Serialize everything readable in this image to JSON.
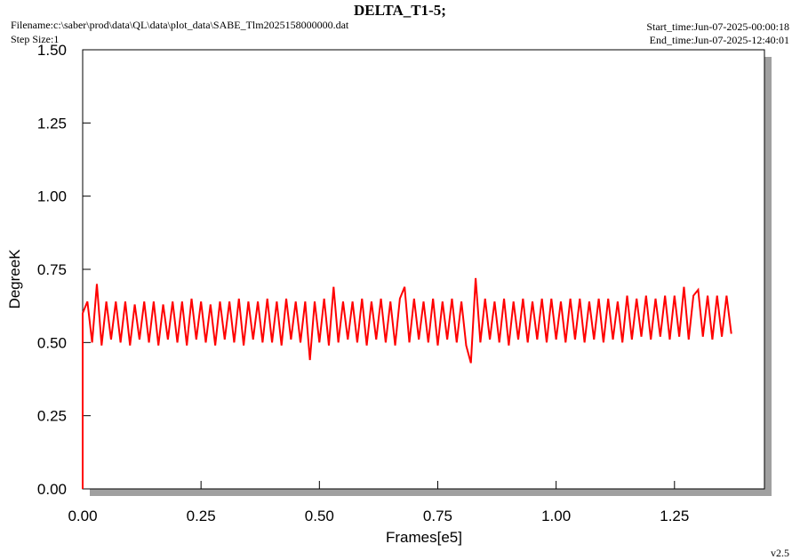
{
  "header": {
    "title": "DELTA_T1-5;",
    "filename": "Filename:c:\\saber\\prod\\data\\QL\\data\\plot_data\\SABE_Tlm2025158000000.dat",
    "step_size": "Step Size:1",
    "start_time": "Start_time:Jun-07-2025-00:00:18",
    "end_time": "End_time:Jun-07-2025-12:40:01",
    "version": "v2.5"
  },
  "chart_data": {
    "type": "line",
    "xlabel": "Frames[e5]",
    "ylabel": "DegreeK",
    "xlim": [
      0,
      1.44
    ],
    "ylim": [
      0,
      1.5
    ],
    "xticks": [
      {
        "value": 0,
        "label": "0.00"
      },
      {
        "value": 0.25,
        "label": "0.25"
      },
      {
        "value": 0.5,
        "label": "0.50"
      },
      {
        "value": 0.75,
        "label": "0.75"
      },
      {
        "value": 1,
        "label": "1.00"
      },
      {
        "value": 1.25,
        "label": "1.25"
      }
    ],
    "yticks": [
      {
        "value": 0,
        "label": "0.00"
      },
      {
        "value": 0.25,
        "label": "0.25"
      },
      {
        "value": 0.5,
        "label": "0.50"
      },
      {
        "value": 0.75,
        "label": "0.75"
      },
      {
        "value": 1,
        "label": "1.00"
      },
      {
        "value": 1.25,
        "label": "1.25"
      },
      {
        "value": 1.5,
        "label": "1.50"
      }
    ],
    "color": "#ff0000",
    "x": [
      0,
      0,
      0.01,
      0.02,
      0.03,
      0.04,
      0.05,
      0.06,
      0.07,
      0.08,
      0.09,
      0.1,
      0.11,
      0.12,
      0.13,
      0.14,
      0.15,
      0.16,
      0.17,
      0.18,
      0.19,
      0.2,
      0.21,
      0.22,
      0.23,
      0.24,
      0.25,
      0.26,
      0.27,
      0.28,
      0.29,
      0.3,
      0.31,
      0.32,
      0.33,
      0.34,
      0.35,
      0.36,
      0.37,
      0.38,
      0.39,
      0.4,
      0.41,
      0.42,
      0.43,
      0.44,
      0.45,
      0.46,
      0.47,
      0.48,
      0.49,
      0.5,
      0.51,
      0.52,
      0.53,
      0.54,
      0.55,
      0.56,
      0.57,
      0.58,
      0.59,
      0.6,
      0.61,
      0.62,
      0.63,
      0.64,
      0.65,
      0.66,
      0.67,
      0.68,
      0.69,
      0.7,
      0.71,
      0.72,
      0.73,
      0.74,
      0.75,
      0.76,
      0.77,
      0.78,
      0.79,
      0.8,
      0.81,
      0.82,
      0.83,
      0.84,
      0.85,
      0.86,
      0.87,
      0.88,
      0.89,
      0.9,
      0.91,
      0.92,
      0.93,
      0.94,
      0.95,
      0.96,
      0.97,
      0.98,
      0.99,
      1,
      1.01,
      1.02,
      1.03,
      1.04,
      1.05,
      1.06,
      1.07,
      1.08,
      1.09,
      1.1,
      1.11,
      1.12,
      1.13,
      1.14,
      1.15,
      1.16,
      1.17,
      1.18,
      1.19,
      1.2,
      1.21,
      1.22,
      1.23,
      1.24,
      1.25,
      1.26,
      1.27,
      1.28,
      1.29,
      1.3,
      1.31,
      1.32,
      1.33,
      1.34,
      1.35,
      1.36,
      1.37
    ],
    "values": [
      0,
      0.6,
      0.64,
      0.5,
      0.7,
      0.49,
      0.64,
      0.51,
      0.64,
      0.5,
      0.64,
      0.49,
      0.63,
      0.51,
      0.64,
      0.5,
      0.64,
      0.49,
      0.63,
      0.51,
      0.64,
      0.5,
      0.64,
      0.49,
      0.65,
      0.51,
      0.64,
      0.5,
      0.63,
      0.49,
      0.64,
      0.51,
      0.64,
      0.5,
      0.65,
      0.49,
      0.64,
      0.51,
      0.64,
      0.5,
      0.65,
      0.5,
      0.64,
      0.49,
      0.65,
      0.51,
      0.64,
      0.5,
      0.64,
      0.44,
      0.64,
      0.5,
      0.65,
      0.49,
      0.69,
      0.5,
      0.64,
      0.51,
      0.64,
      0.5,
      0.65,
      0.49,
      0.64,
      0.51,
      0.65,
      0.5,
      0.64,
      0.49,
      0.65,
      0.69,
      0.5,
      0.65,
      0.51,
      0.64,
      0.5,
      0.65,
      0.49,
      0.64,
      0.51,
      0.65,
      0.5,
      0.64,
      0.49,
      0.43,
      0.72,
      0.5,
      0.65,
      0.51,
      0.64,
      0.5,
      0.65,
      0.49,
      0.64,
      0.51,
      0.65,
      0.5,
      0.64,
      0.51,
      0.65,
      0.5,
      0.65,
      0.51,
      0.64,
      0.5,
      0.65,
      0.51,
      0.65,
      0.5,
      0.64,
      0.51,
      0.65,
      0.5,
      0.65,
      0.51,
      0.64,
      0.5,
      0.66,
      0.51,
      0.65,
      0.52,
      0.66,
      0.51,
      0.65,
      0.52,
      0.66,
      0.51,
      0.66,
      0.52,
      0.69,
      0.51,
      0.66,
      0.68,
      0.52,
      0.66,
      0.51,
      0.66,
      0.52,
      0.66,
      0.53
    ]
  }
}
